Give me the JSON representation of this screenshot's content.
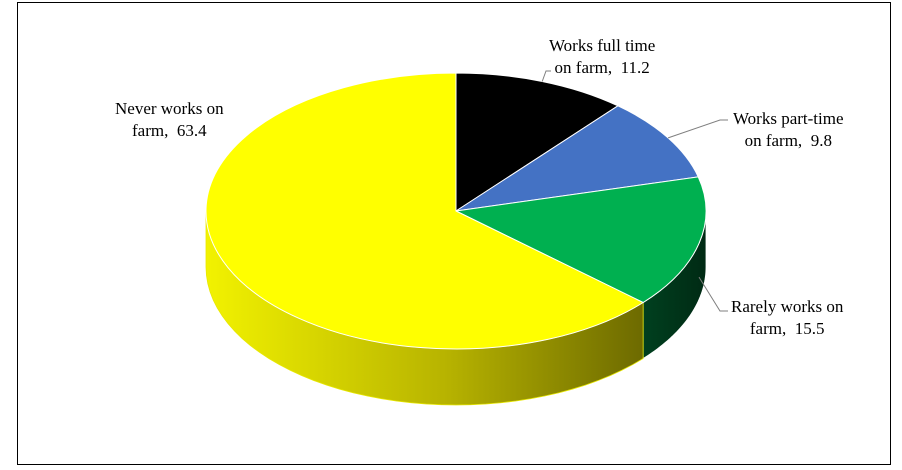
{
  "chart_data": {
    "type": "pie",
    "style": "3d",
    "title": "",
    "slices": [
      {
        "label_lines": [
          "Works full time",
          "on farm,"
        ],
        "value": 11.2,
        "color": "#000000",
        "side_color": "#000000"
      },
      {
        "label_lines": [
          "Works part-time",
          "on farm,"
        ],
        "value": 9.8,
        "color": "#4472c4",
        "side_color": "#2f528f"
      },
      {
        "label_lines": [
          "Rarely works on",
          "farm,"
        ],
        "value": 15.5,
        "color": "#00b050",
        "side_color": "#00391b"
      },
      {
        "label_lines": [
          "Never works on",
          "farm,"
        ],
        "value": 63.4,
        "color": "#ffff00",
        "side_color": "#8a8600"
      }
    ],
    "legend": "none",
    "start_angle_deg": 90,
    "direction": "clockwise"
  }
}
